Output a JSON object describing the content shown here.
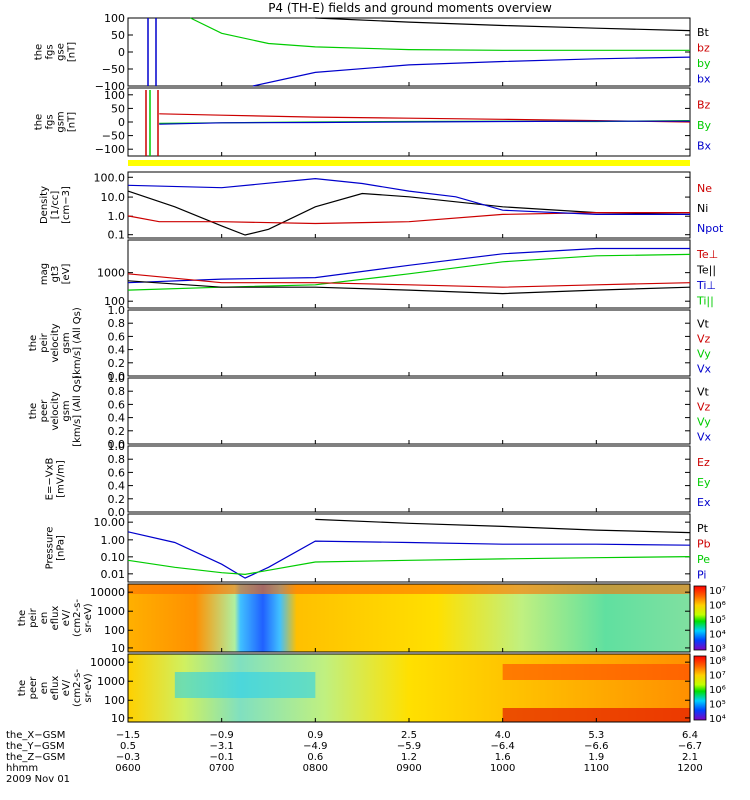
{
  "title": "P4 (TH-E) fields and ground moments overview",
  "colors": {
    "black": "#000000",
    "red": "#cc0000",
    "green": "#00cc00",
    "blue": "#0000cc",
    "yellow": "#ffff00"
  },
  "panels": [
    {
      "key": "fgs_gse",
      "ylabel": [
        "the",
        "fgs",
        "gse",
        "[nT]"
      ],
      "ticks": [
        "100",
        "50",
        "0",
        "−50",
        "−100"
      ],
      "legend": [
        {
          "text": "Bt",
          "color": "black"
        },
        {
          "text": "bz",
          "color": "red"
        },
        {
          "text": "by",
          "color": "green"
        },
        {
          "text": "bx",
          "color": "blue"
        }
      ]
    },
    {
      "key": "fgs_gsm",
      "ylabel": [
        "the",
        "fgs",
        "gsm",
        "[nT]"
      ],
      "ticks": [
        "100",
        "50",
        "0",
        "−50",
        "−100"
      ],
      "legend": [
        {
          "text": "Bz",
          "color": "red"
        },
        {
          "text": "By",
          "color": "green"
        },
        {
          "text": "Bx",
          "color": "blue"
        }
      ]
    },
    {
      "key": "density",
      "ylabel": [
        "Density",
        "[1/cc]",
        "[cm−3]"
      ],
      "ticks": [
        "100.0",
        "10.0",
        "1.0",
        "0.1"
      ],
      "legend": [
        {
          "text": "Ne",
          "color": "red"
        },
        {
          "text": "Ni",
          "color": "black"
        },
        {
          "text": "Npot",
          "color": "blue"
        }
      ]
    },
    {
      "key": "temperature",
      "ylabel": [
        "mag",
        "gt3",
        "[eV]"
      ],
      "ticks": [
        "1000",
        "100"
      ],
      "legend": [
        {
          "text": "Te⊥",
          "color": "red"
        },
        {
          "text": "Te||",
          "color": "black"
        },
        {
          "text": "Ti⊥",
          "color": "blue"
        },
        {
          "text": "Ti||",
          "color": "green"
        }
      ]
    },
    {
      "key": "peir_velocity",
      "ylabel": [
        "the",
        "peir",
        "velocity",
        "gsm",
        "[km/s] (All Qs)"
      ],
      "ticks": [
        "1.0",
        "0.8",
        "0.6",
        "0.4",
        "0.2",
        "0.0"
      ],
      "legend": [
        {
          "text": "Vt",
          "color": "black"
        },
        {
          "text": "Vz",
          "color": "red"
        },
        {
          "text": "Vy",
          "color": "green"
        },
        {
          "text": "Vx",
          "color": "blue"
        }
      ]
    },
    {
      "key": "peer_velocity",
      "ylabel": [
        "the",
        "peer",
        "velocity",
        "gsm",
        "[km/s] (All Qs)"
      ],
      "ticks": [
        "1.0",
        "0.8",
        "0.6",
        "0.4",
        "0.2",
        "0.0"
      ],
      "legend": [
        {
          "text": "Vt",
          "color": "black"
        },
        {
          "text": "Vz",
          "color": "red"
        },
        {
          "text": "Vy",
          "color": "green"
        },
        {
          "text": "Vx",
          "color": "blue"
        }
      ]
    },
    {
      "key": "e_field",
      "ylabel": [
        "E=−VxB",
        "[mV/m]"
      ],
      "ticks": [
        "1.0",
        "0.8",
        "0.6",
        "0.4",
        "0.2",
        "0.0"
      ],
      "legend": [
        {
          "text": "Ez",
          "color": "red"
        },
        {
          "text": "Ey",
          "color": "green"
        },
        {
          "text": "Ex",
          "color": "blue"
        }
      ]
    },
    {
      "key": "pressure",
      "ylabel": [
        "Pressure",
        "[nPa]"
      ],
      "ticks": [
        "10.00",
        "1.00",
        "0.10",
        "0.01"
      ],
      "legend": [
        {
          "text": "Pt",
          "color": "black"
        },
        {
          "text": "Pb",
          "color": "red"
        },
        {
          "text": "Pe",
          "color": "green"
        },
        {
          "text": "Pi",
          "color": "blue"
        }
      ]
    },
    {
      "key": "peir_eflux",
      "ylabel": [
        "the",
        "peir",
        "en",
        "eflux",
        "eV/",
        "(cm2-s-",
        "sr-eV)"
      ],
      "ticks": [
        "10000",
        "1000",
        "100",
        "10"
      ],
      "colorbar": [
        "10⁷",
        "10⁶",
        "10⁵",
        "10⁴",
        "10³"
      ]
    },
    {
      "key": "peer_eflux",
      "ylabel": [
        "the",
        "peer",
        "en",
        "eflux",
        "eV/",
        "(cm2-s-",
        "sr-eV)"
      ],
      "ticks": [
        "10000",
        "1000",
        "100",
        "10"
      ],
      "colorbar": [
        "10⁸",
        "10⁷",
        "10⁶",
        "10⁵",
        "10⁴"
      ]
    }
  ],
  "xaxis": {
    "rows": [
      {
        "label": "the_X−GSM",
        "values": [
          "−1.5",
          "−0.9",
          "0.9",
          "2.5",
          "4.0",
          "5.3",
          "6.4"
        ]
      },
      {
        "label": "the_Y−GSM",
        "values": [
          "0.5",
          "−3.1",
          "−4.9",
          "−5.9",
          "−6.4",
          "−6.6",
          "−6.7"
        ]
      },
      {
        "label": "the_Z−GSM",
        "values": [
          "−0.3",
          "−0.1",
          "0.6",
          "1.2",
          "1.6",
          "1.9",
          "2.1"
        ]
      },
      {
        "label": "hhmm",
        "values": [
          "0600",
          "0700",
          "0800",
          "0900",
          "1000",
          "1100",
          "1200"
        ]
      }
    ],
    "date": "2009 Nov 01"
  },
  "chart_data": {
    "type": "line",
    "title": "P4 (TH-E) fields and ground moments overview",
    "x_times": [
      "0600",
      "0700",
      "0800",
      "0900",
      "1000",
      "1100",
      "1200"
    ],
    "series": [
      {
        "panel": "fgs_gse",
        "name": "Bt",
        "x": [
          "0800",
          "0900",
          "1000",
          "1100",
          "1200"
        ],
        "values": [
          100,
          88,
          78,
          70,
          63
        ]
      },
      {
        "panel": "fgs_gse",
        "name": "by",
        "x": [
          "0640",
          "0700",
          "0730",
          "0800",
          "0900",
          "1000",
          "1100",
          "1200"
        ],
        "values": [
          100,
          55,
          25,
          15,
          7,
          5,
          5,
          5
        ]
      },
      {
        "panel": "fgs_gse",
        "name": "bx",
        "x": [
          "0720",
          "0800",
          "0900",
          "1000",
          "1100",
          "1200"
        ],
        "values": [
          -100,
          -60,
          -38,
          -28,
          -20,
          -15
        ]
      },
      {
        "panel": "fgs_gsm",
        "name": "Bz",
        "x": [
          "0620",
          "0700",
          "0800",
          "0900",
          "1000",
          "1100",
          "1200"
        ],
        "values": [
          30,
          25,
          18,
          14,
          10,
          5,
          0
        ]
      },
      {
        "panel": "fgs_gsm",
        "name": "By",
        "x": [
          "0620",
          "0700",
          "0800",
          "0900",
          "1000",
          "1100",
          "1200"
        ],
        "values": [
          -5,
          -3,
          0,
          2,
          3,
          2,
          5
        ]
      },
      {
        "panel": "fgs_gsm",
        "name": "Bx",
        "x": [
          "0620",
          "0700",
          "0800",
          "0900",
          "1000",
          "1100",
          "1200"
        ],
        "values": [
          -8,
          -3,
          -2,
          0,
          2,
          3,
          3
        ]
      },
      {
        "panel": "density",
        "name": "Ni",
        "x": [
          "0600",
          "0630",
          "0700",
          "0715",
          "0730",
          "0800",
          "0830",
          "0900",
          "1000",
          "1100",
          "1200"
        ],
        "values": [
          20,
          3,
          0.3,
          0.1,
          0.2,
          3,
          15,
          10,
          3,
          1.5,
          1.2
        ]
      },
      {
        "panel": "density",
        "name": "Ne",
        "x": [
          "0600",
          "0620",
          "0700",
          "0800",
          "0900",
          "1000",
          "1100",
          "1200"
        ],
        "values": [
          1,
          0.5,
          0.5,
          0.4,
          0.5,
          1.2,
          1.5,
          1.5
        ]
      },
      {
        "panel": "density",
        "name": "Npot",
        "x": [
          "0600",
          "0700",
          "0800",
          "0830",
          "0900",
          "0930",
          "1000",
          "1100",
          "1200"
        ],
        "values": [
          40,
          30,
          90,
          50,
          20,
          10,
          2,
          1.2,
          1.2
        ]
      },
      {
        "panel": "temperature",
        "name": "Ti⊥",
        "x": [
          "0600",
          "0700",
          "0800",
          "0900",
          "1000",
          "1100",
          "1200"
        ],
        "values": [
          400,
          500,
          550,
          1200,
          2500,
          3500,
          3500
        ]
      },
      {
        "panel": "temperature",
        "name": "Ti||",
        "x": [
          "0600",
          "0700",
          "0800",
          "0900",
          "1000",
          "1100",
          "1200"
        ],
        "values": [
          250,
          300,
          350,
          700,
          1500,
          2200,
          2400
        ]
      },
      {
        "panel": "temperature",
        "name": "Te⊥",
        "x": [
          "0600",
          "0700",
          "0800",
          "0900",
          "1000",
          "1100",
          "1200"
        ],
        "values": [
          700,
          400,
          400,
          350,
          300,
          350,
          400
        ]
      },
      {
        "panel": "temperature",
        "name": "Te||",
        "x": [
          "0600",
          "0700",
          "0800",
          "0900",
          "1000",
          "1100",
          "1200"
        ],
        "values": [
          450,
          300,
          300,
          250,
          200,
          250,
          300
        ]
      },
      {
        "panel": "pressure",
        "name": "Pt",
        "x": [
          "0800",
          "0900",
          "1000",
          "1100",
          "1200"
        ],
        "values": [
          10,
          6,
          4,
          2.5,
          1.8
        ]
      },
      {
        "panel": "pressure",
        "name": "Pi",
        "x": [
          "0600",
          "0630",
          "0700",
          "0715",
          "0730",
          "0800",
          "0900",
          "1000",
          "1100",
          "1200"
        ],
        "values": [
          2,
          0.5,
          0.03,
          0.005,
          0.02,
          0.6,
          0.5,
          0.4,
          0.4,
          0.35
        ]
      },
      {
        "panel": "pressure",
        "name": "Pe",
        "x": [
          "0600",
          "0630",
          "0700",
          "0715",
          "0800",
          "0900",
          "1000",
          "1100",
          "1200"
        ],
        "values": [
          0.05,
          0.02,
          0.01,
          0.008,
          0.04,
          0.05,
          0.06,
          0.07,
          0.08
        ]
      }
    ],
    "ylim_fgs": [
      -100,
      100
    ],
    "ylim_density": [
      0.1,
      100
    ],
    "ylim_pressure": [
      0.01,
      10
    ],
    "grid": false
  }
}
